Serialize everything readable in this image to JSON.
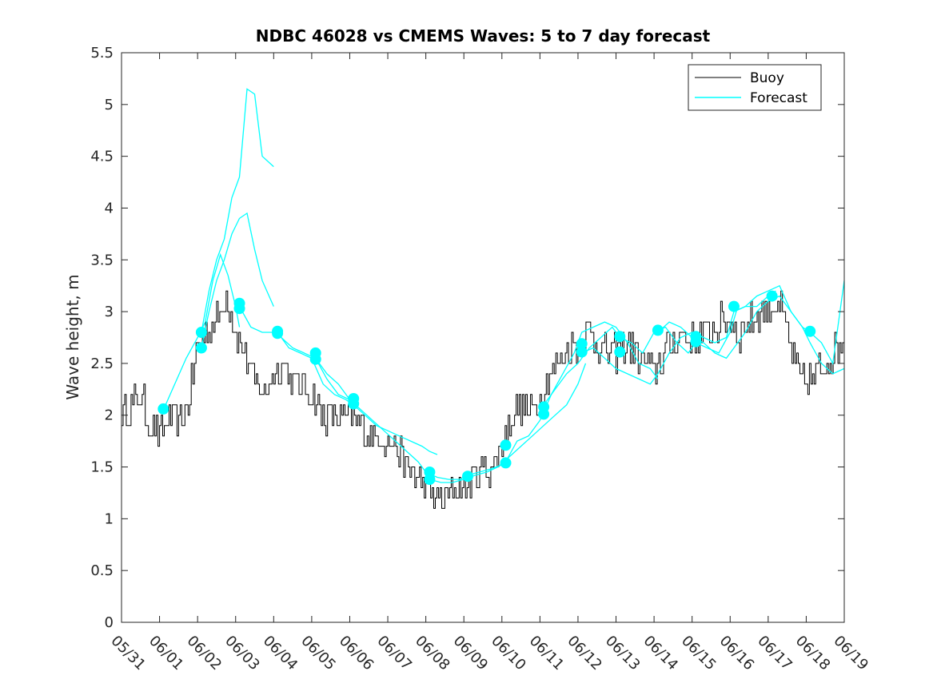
{
  "chart_data": {
    "type": "line",
    "title": "NDBC 46028 vs CMEMS Waves: 5 to 7 day forecast",
    "xlabel": "",
    "ylabel": "Wave height, m",
    "x_tick_labels": [
      "05/31",
      "06/01",
      "06/02",
      "06/03",
      "06/04",
      "06/05",
      "06/06",
      "06/07",
      "06/08",
      "06/09",
      "06/10",
      "06/11",
      "06/12",
      "06/13",
      "06/14",
      "06/15",
      "06/16",
      "06/17",
      "06/18",
      "06/19"
    ],
    "y_tick_labels": [
      "0",
      "0.5",
      "1",
      "1.5",
      "2",
      "2.5",
      "3",
      "3.5",
      "4",
      "4.5",
      "5",
      "5.5"
    ],
    "xlim": [
      "05/31",
      "06/19"
    ],
    "ylim": [
      0,
      5.5
    ],
    "grid": false,
    "legend_position": "top-right",
    "colors": {
      "buoy": "#000000",
      "forecast": "#00ffff"
    },
    "series": [
      {
        "name": "Buoy",
        "x_days_from_0531": [
          0,
          0.25,
          0.5,
          0.75,
          1,
          1.25,
          1.5,
          1.75,
          2,
          2.25,
          2.5,
          2.75,
          3,
          3.25,
          3.5,
          3.75,
          4,
          4.25,
          4.5,
          4.75,
          5,
          5.25,
          5.5,
          5.75,
          6,
          6.25,
          6.5,
          6.75,
          7,
          7.25,
          7.5,
          7.75,
          8,
          8.25,
          8.5,
          8.75,
          9,
          9.25,
          9.5,
          9.75,
          10,
          10.25,
          10.5,
          10.75,
          11,
          11.25,
          11.5,
          11.75,
          12,
          12.25,
          12.5,
          12.75,
          13,
          13.25,
          13.5,
          13.75,
          14,
          14.25,
          14.5,
          14.75,
          15,
          15.25,
          15.5,
          15.75,
          16,
          16.25,
          16.5,
          16.75,
          17,
          17.25,
          17.5,
          17.75,
          18,
          18.25,
          18.5,
          18.75,
          19
        ],
        "values": [
          2.0,
          2.1,
          2.2,
          1.9,
          1.8,
          2.0,
          1.9,
          2.1,
          2.7,
          2.8,
          2.9,
          3.2,
          2.8,
          2.6,
          2.3,
          2.2,
          2.4,
          2.5,
          2.3,
          2.3,
          2.2,
          2.0,
          2.0,
          1.95,
          2.0,
          1.9,
          1.8,
          1.8,
          1.75,
          1.7,
          1.5,
          1.4,
          1.3,
          1.2,
          1.2,
          1.3,
          1.3,
          1.4,
          1.5,
          1.5,
          1.7,
          2.0,
          2.1,
          2.0,
          2.2,
          2.4,
          2.5,
          2.6,
          2.7,
          2.8,
          2.7,
          2.6,
          2.6,
          2.7,
          2.6,
          2.5,
          2.4,
          2.6,
          2.7,
          2.8,
          2.7,
          2.8,
          2.8,
          2.9,
          2.9,
          2.8,
          2.9,
          3.0,
          3.0,
          3.1,
          2.8,
          2.4,
          2.3,
          2.4,
          2.5,
          2.6,
          2.8
        ]
      },
      {
        "name": "Forecast",
        "runs": [
          {
            "x_days_from_0531": [
              1.1,
              1.4,
              1.7,
              2.0,
              2.2,
              2.4,
              2.6,
              2.8,
              3.0,
              3.1
            ],
            "values": [
              2.05,
              2.3,
              2.55,
              2.75,
              2.9,
              3.3,
              3.55,
              3.35,
              3.05,
              2.85
            ]
          },
          {
            "x_days_from_0531": [
              2.1,
              2.3,
              2.5,
              2.7,
              2.9,
              3.1,
              3.3,
              3.5,
              3.7,
              4.0
            ],
            "values": [
              2.8,
              3.2,
              3.5,
              3.7,
              4.1,
              4.3,
              5.15,
              5.1,
              4.5,
              4.4
            ]
          },
          {
            "x_days_from_0531": [
              2.1,
              2.3,
              2.5,
              2.7,
              2.9,
              3.1,
              3.3,
              3.5,
              3.7,
              4.0
            ],
            "values": [
              2.65,
              3.0,
              3.3,
              3.5,
              3.75,
              3.9,
              3.95,
              3.6,
              3.3,
              3.05
            ]
          },
          {
            "x_days_from_0531": [
              3.1,
              3.4,
              3.7,
              4.0,
              4.2,
              4.5,
              4.8,
              5.1,
              5.4,
              5.7,
              6.0
            ],
            "values": [
              3.05,
              2.85,
              2.8,
              2.8,
              2.75,
              2.65,
              2.6,
              2.55,
              2.4,
              2.3,
              2.15
            ]
          },
          {
            "x_days_from_0531": [
              4.1,
              4.4,
              4.7,
              5.0,
              5.3,
              5.6,
              5.9,
              6.1,
              6.4,
              6.7,
              7.0,
              7.3,
              7.6,
              7.9,
              8.1,
              8.3
            ],
            "values": [
              2.8,
              2.65,
              2.6,
              2.55,
              2.3,
              2.2,
              2.15,
              2.1,
              2.0,
              1.9,
              1.85,
              1.8,
              1.75,
              1.7,
              1.65,
              1.62
            ]
          },
          {
            "x_days_from_0531": [
              5.1,
              5.4,
              5.7,
              6.0,
              6.3,
              6.6,
              6.9,
              7.2,
              7.5,
              7.8,
              8.0,
              8.3,
              8.6,
              8.9,
              9.1,
              9.4,
              9.7,
              10.0,
              10.2
            ],
            "values": [
              2.55,
              2.35,
              2.2,
              2.15,
              2.05,
              1.95,
              1.85,
              1.75,
              1.65,
              1.55,
              1.45,
              1.4,
              1.38,
              1.38,
              1.42,
              1.45,
              1.48,
              1.52,
              1.55
            ]
          },
          {
            "x_days_from_0531": [
              8.1,
              8.4,
              8.7,
              9.0,
              9.3,
              9.6,
              9.9,
              10.2,
              10.5,
              10.8,
              11.1,
              11.4,
              11.7,
              12.0,
              12.2
            ],
            "values": [
              1.38,
              1.35,
              1.35,
              1.38,
              1.42,
              1.45,
              1.5,
              1.6,
              1.7,
              1.8,
              1.9,
              2.0,
              2.1,
              2.3,
              2.5
            ]
          },
          {
            "x_days_from_0531": [
              10.1,
              10.4,
              10.7,
              11.0,
              11.3,
              11.6,
              11.9,
              12.1,
              12.4,
              12.7,
              13.0,
              13.3,
              13.6,
              13.9,
              14.1
            ],
            "values": [
              1.55,
              1.75,
              1.8,
              1.95,
              2.2,
              2.4,
              2.6,
              2.8,
              2.85,
              2.9,
              2.85,
              2.7,
              2.5,
              2.45,
              2.35
            ]
          },
          {
            "x_days_from_0531": [
              11.1,
              11.4,
              11.7,
              12.0,
              12.3,
              12.6,
              12.9,
              13.1,
              13.4,
              13.7,
              14.0,
              14.3,
              14.6,
              14.9,
              15.1,
              15.4,
              15.7,
              16.0,
              16.2
            ],
            "values": [
              2.1,
              2.25,
              2.4,
              2.5,
              2.65,
              2.75,
              2.85,
              2.75,
              2.7,
              2.6,
              2.8,
              2.85,
              2.7,
              2.6,
              2.7,
              2.65,
              2.6,
              2.8,
              3.05
            ]
          },
          {
            "x_days_from_0531": [
              12.1,
              12.4,
              12.7,
              13.0,
              13.3,
              13.6,
              13.9,
              14.1,
              14.4,
              14.7,
              15.0,
              15.3,
              15.6,
              15.9,
              16.1,
              16.4,
              16.7,
              17.0,
              17.2
            ],
            "values": [
              2.6,
              2.65,
              2.55,
              2.45,
              2.4,
              2.35,
              2.3,
              2.4,
              2.6,
              2.75,
              2.8,
              2.75,
              2.7,
              2.75,
              3.0,
              3.05,
              3.05,
              3.15,
              3.2
            ]
          },
          {
            "x_days_from_0531": [
              14.1,
              14.4,
              14.7,
              15.0,
              15.3,
              15.6,
              15.9,
              16.1,
              16.4,
              16.7,
              17.0,
              17.3,
              17.6,
              17.9,
              18.1,
              18.4,
              18.7,
              19.0
            ],
            "values": [
              2.8,
              2.9,
              2.85,
              2.75,
              2.7,
              2.6,
              2.55,
              2.65,
              2.8,
              3.0,
              3.1,
              3.15,
              3.0,
              2.85,
              2.7,
              2.5,
              2.4,
              2.45
            ]
          },
          {
            "x_days_from_0531": [
              16.1,
              16.4,
              16.7,
              17.0,
              17.3,
              17.6,
              17.9,
              18.1,
              18.4,
              18.7,
              19.0
            ],
            "values": [
              3.0,
              3.05,
              3.15,
              3.2,
              3.25,
              3.0,
              2.85,
              2.8,
              2.7,
              2.5,
              3.3
            ]
          }
        ],
        "markers": [
          {
            "x_day": 1.1,
            "value": 2.06
          },
          {
            "x_day": 2.1,
            "value": 2.8
          },
          {
            "x_day": 2.1,
            "value": 2.65
          },
          {
            "x_day": 3.1,
            "value": 3.08
          },
          {
            "x_day": 3.1,
            "value": 3.03
          },
          {
            "x_day": 4.1,
            "value": 2.81
          },
          {
            "x_day": 4.1,
            "value": 2.79
          },
          {
            "x_day": 5.1,
            "value": 2.6
          },
          {
            "x_day": 5.1,
            "value": 2.54
          },
          {
            "x_day": 6.1,
            "value": 2.16
          },
          {
            "x_day": 6.1,
            "value": 2.11
          },
          {
            "x_day": 8.1,
            "value": 1.45
          },
          {
            "x_day": 8.1,
            "value": 1.38
          },
          {
            "x_day": 9.1,
            "value": 1.41
          },
          {
            "x_day": 10.1,
            "value": 1.71
          },
          {
            "x_day": 10.1,
            "value": 1.54
          },
          {
            "x_day": 11.1,
            "value": 2.08
          },
          {
            "x_day": 11.1,
            "value": 2.01
          },
          {
            "x_day": 12.1,
            "value": 2.69
          },
          {
            "x_day": 12.1,
            "value": 2.61
          },
          {
            "x_day": 13.1,
            "value": 2.76
          },
          {
            "x_day": 13.1,
            "value": 2.61
          },
          {
            "x_day": 14.1,
            "value": 2.82
          },
          {
            "x_day": 15.1,
            "value": 2.76
          },
          {
            "x_day": 15.1,
            "value": 2.71
          },
          {
            "x_day": 16.1,
            "value": 3.05
          },
          {
            "x_day": 17.1,
            "value": 3.15
          },
          {
            "x_day": 18.1,
            "value": 2.81
          }
        ]
      }
    ]
  }
}
